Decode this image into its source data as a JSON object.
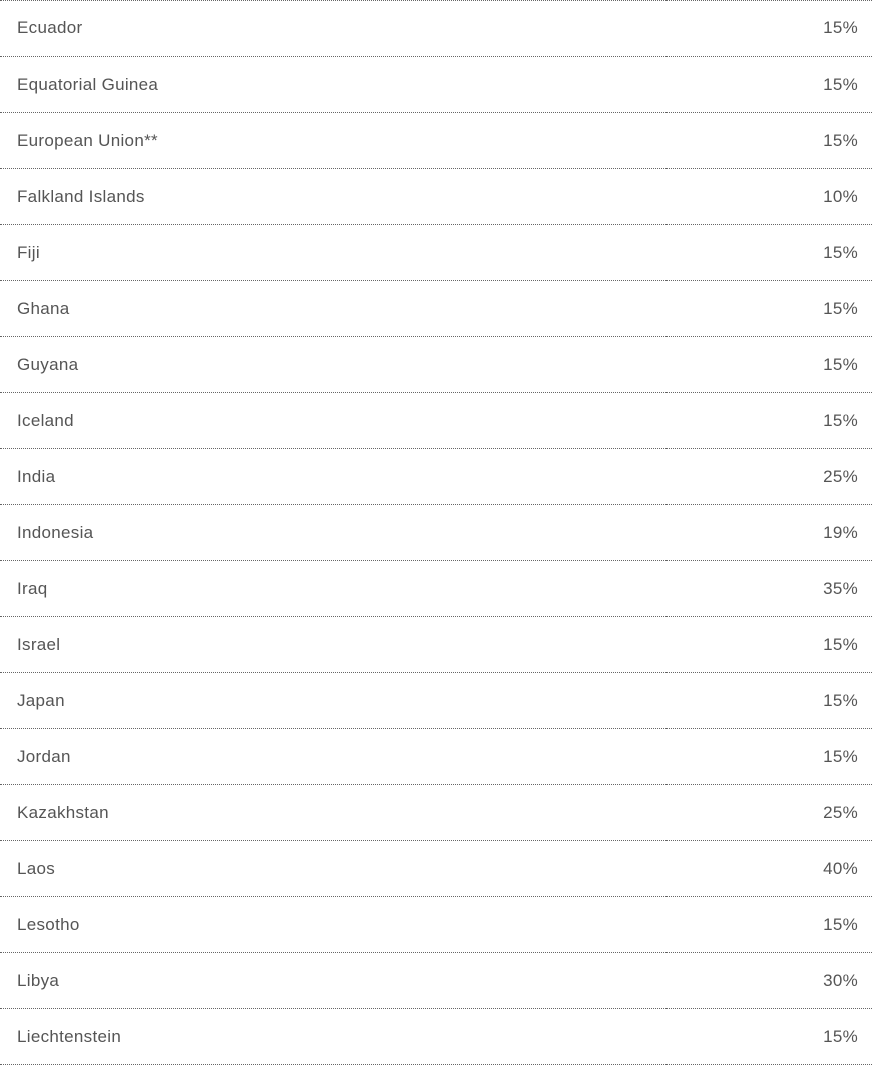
{
  "tariff_table": {
    "rows": [
      {
        "country": "Ecuador",
        "rate": "15%"
      },
      {
        "country": "Equatorial Guinea",
        "rate": "15%"
      },
      {
        "country": "European Union**",
        "rate": "15%"
      },
      {
        "country": "Falkland Islands",
        "rate": "10%"
      },
      {
        "country": "Fiji",
        "rate": "15%"
      },
      {
        "country": "Ghana",
        "rate": "15%"
      },
      {
        "country": "Guyana",
        "rate": "15%"
      },
      {
        "country": "Iceland",
        "rate": "15%"
      },
      {
        "country": "India",
        "rate": "25%"
      },
      {
        "country": "Indonesia",
        "rate": "19%"
      },
      {
        "country": "Iraq",
        "rate": "35%"
      },
      {
        "country": "Israel",
        "rate": "15%"
      },
      {
        "country": "Japan",
        "rate": "15%"
      },
      {
        "country": "Jordan",
        "rate": "15%"
      },
      {
        "country": "Kazakhstan",
        "rate": "25%"
      },
      {
        "country": "Laos",
        "rate": "40%"
      },
      {
        "country": "Lesotho",
        "rate": "15%"
      },
      {
        "country": "Libya",
        "rate": "30%"
      },
      {
        "country": "Liechtenstein",
        "rate": "15%"
      }
    ]
  }
}
